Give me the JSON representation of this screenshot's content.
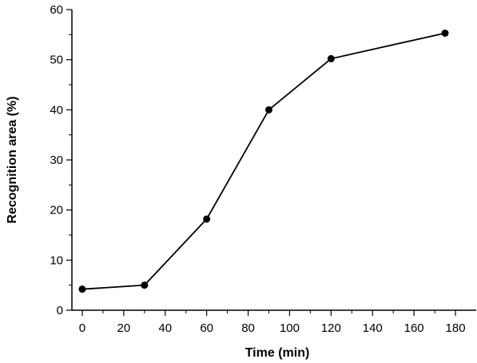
{
  "chart_data": {
    "type": "line",
    "title": "",
    "xlabel": "Time (min)",
    "ylabel": "Recognition area (%)",
    "xlim": [
      -5,
      190
    ],
    "ylim": [
      0,
      60
    ],
    "xticks": [
      0,
      20,
      40,
      60,
      80,
      100,
      120,
      140,
      160,
      180
    ],
    "yticks": [
      0,
      10,
      20,
      30,
      40,
      50,
      60
    ],
    "grid": false,
    "legend": "none",
    "series": [
      {
        "x": [
          0,
          30,
          60,
          90,
          120,
          175
        ],
        "y": [
          4.2,
          5.0,
          18.2,
          40.0,
          50.2,
          55.3
        ],
        "color": "#000000",
        "marker": "circle"
      }
    ]
  }
}
